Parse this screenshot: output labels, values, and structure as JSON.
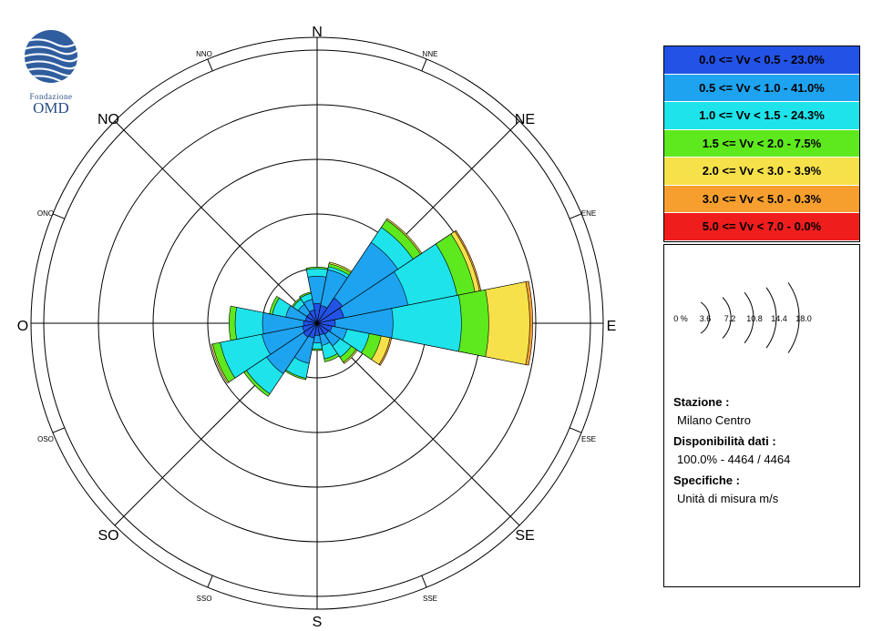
{
  "logo": {
    "org_line1": "Fondazione",
    "org_line2": "OMD"
  },
  "compass": {
    "major": {
      "N": "N",
      "NE": "NE",
      "E": "E",
      "SE": "SE",
      "S": "S",
      "SO": "SO",
      "O": "O",
      "NO": "NO"
    },
    "minor": {
      "NNE": "NNE",
      "ENE": "ENE",
      "ESE": "ESE",
      "SSE": "SSE",
      "SSO": "SSO",
      "OSO": "OSO",
      "ONO": "ONO",
      "NNO": "NNO"
    }
  },
  "legend": {
    "items": [
      {
        "label": "0.0 <= Vv < 0.5 - 23.0%",
        "color": "#2352e6"
      },
      {
        "label": "0.5 <= Vv < 1.0 - 41.0%",
        "color": "#1ea3f0"
      },
      {
        "label": "1.0 <= Vv < 1.5 - 24.3%",
        "color": "#1ee3eb"
      },
      {
        "label": "1.5 <= Vv < 2.0 - 7.5%",
        "color": "#5ee81e"
      },
      {
        "label": "2.0 <= Vv < 3.0 - 3.9%",
        "color": "#f7e14a"
      },
      {
        "label": "3.0 <= Vv < 5.0 - 0.3%",
        "color": "#f79f2e"
      },
      {
        "label": "5.0 <= Vv < 7.0 - 0.0%",
        "color": "#f01d1d"
      }
    ]
  },
  "scale": {
    "labels": [
      "0 %",
      "3.6",
      "7.2",
      "10.8",
      "14.4",
      "18.0"
    ]
  },
  "info": {
    "station_label": "Stazione :",
    "station_value": "Milano Centro",
    "availability_label": "Disponibilità dati :",
    "availability_value": "100.0% - 4464 / 4464",
    "specs_label": "Specifiche :",
    "specs_value": "Unità di misura m/s"
  },
  "chart_data": {
    "type": "wind_rose",
    "unit": "%",
    "rmax": 18.0,
    "rings": [
      3.6,
      7.2,
      10.8,
      14.4,
      18.0
    ],
    "directions": [
      "N",
      "NNE",
      "NE",
      "ENE",
      "E",
      "ESE",
      "SE",
      "SSE",
      "S",
      "SSO",
      "SO",
      "OSO",
      "O",
      "ONO",
      "NO",
      "NNO"
    ],
    "directions_deg": [
      0,
      22.5,
      45,
      67.5,
      90,
      112.5,
      135,
      157.5,
      180,
      202.5,
      225,
      247.5,
      270,
      292.5,
      315,
      337.5
    ],
    "speed_classes": [
      "0.0-0.5",
      "0.5-1.0",
      "1.0-1.5",
      "1.5-2.0",
      "2.0-3.0",
      "3.0-5.0",
      "5.0-7.0"
    ],
    "cumulative_by_direction": [
      [
        1.3,
        3.1,
        3.6,
        3.7,
        3.7,
        3.7,
        3.7
      ],
      [
        1.2,
        3.6,
        3.8,
        4.0,
        4.1,
        4.1,
        4.1
      ],
      [
        2.0,
        6.4,
        7.6,
        8.2,
        8.3,
        8.3,
        8.3
      ],
      [
        1.8,
        6.1,
        9.4,
        10.6,
        10.9,
        11.0,
        11.0
      ],
      [
        1.2,
        5.0,
        9.5,
        11.3,
        14.0,
        14.2,
        14.2
      ],
      [
        1.0,
        2.0,
        3.5,
        4.3,
        4.9,
        5.0,
        5.0
      ],
      [
        0.9,
        1.8,
        2.7,
        3.1,
        3.2,
        3.2,
        3.2
      ],
      [
        0.8,
        1.5,
        2.4,
        2.6,
        2.6,
        2.6,
        2.6
      ],
      [
        0.8,
        1.3,
        1.7,
        1.8,
        1.8,
        1.8,
        1.8
      ],
      [
        1.0,
        2.7,
        3.7,
        3.8,
        3.8,
        3.8,
        3.8
      ],
      [
        1.1,
        4.0,
        5.6,
        5.8,
        5.8,
        5.8,
        5.8
      ],
      [
        1.0,
        3.7,
        6.5,
        7.0,
        7.1,
        7.1,
        7.1
      ],
      [
        0.9,
        3.6,
        5.4,
        5.8,
        5.8,
        5.8,
        5.8
      ],
      [
        0.8,
        2.1,
        3.0,
        3.2,
        3.2,
        3.2,
        3.2
      ],
      [
        0.8,
        1.5,
        1.9,
        2.0,
        2.0,
        2.0,
        2.0
      ],
      [
        0.9,
        1.6,
        2.0,
        2.1,
        2.1,
        2.1,
        2.1
      ]
    ]
  }
}
